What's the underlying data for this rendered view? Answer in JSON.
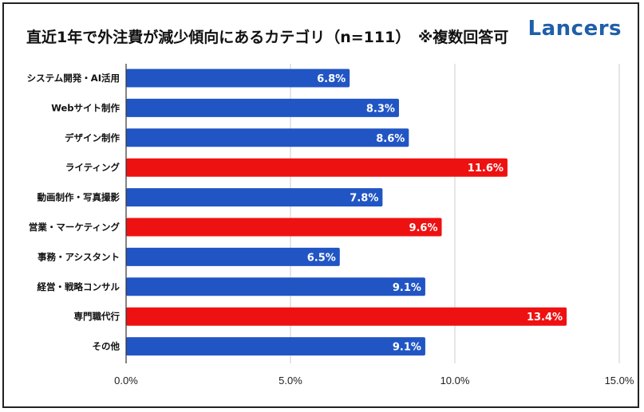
{
  "title": "直近1年で外注費が減少傾向にあるカテゴリ（n=111）　※複数回答可",
  "logo_text": "Lancers",
  "colors": {
    "blue": "#2155c4",
    "red": "#ee1111",
    "grid": "#cccccc",
    "axis": "#333333"
  },
  "chart_data": {
    "type": "bar",
    "orientation": "horizontal",
    "title": "直近1年で外注費が減少傾向にあるカテゴリ（n=111）　※複数回答可",
    "categories": [
      "システム開発・AI活用",
      "Webサイト制作",
      "デザイン制作",
      "ライティング",
      "動画制作・写真撮影",
      "営業・マーケティング",
      "事務・アシスタント",
      "経営・戦略コンサル",
      "専門職代行",
      "その他"
    ],
    "values": [
      6.8,
      8.3,
      8.6,
      11.6,
      7.8,
      9.6,
      6.5,
      9.1,
      13.4,
      9.1
    ],
    "value_labels": [
      "6.8%",
      "8.3%",
      "8.6%",
      "11.6%",
      "7.8%",
      "9.6%",
      "6.5%",
      "9.1%",
      "13.4%",
      "9.1%"
    ],
    "highlighted": [
      false,
      false,
      false,
      true,
      false,
      true,
      false,
      false,
      true,
      false
    ],
    "xlim": [
      0,
      15
    ],
    "x_ticks": [
      0,
      5,
      10,
      15
    ],
    "x_tick_labels": [
      "0.0%",
      "5.0%",
      "10.0%",
      "15.0%"
    ],
    "grid": true,
    "legend": "none"
  }
}
